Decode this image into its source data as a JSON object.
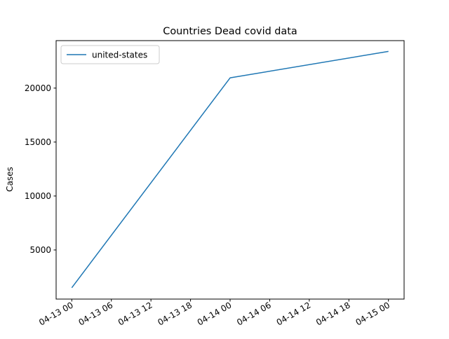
{
  "chart_data": {
    "type": "line",
    "title": "Countries Dead covid data",
    "xlabel": "",
    "ylabel": "Cases",
    "x": [
      "04-13 00",
      "04-14 00",
      "04-15 00"
    ],
    "xlim": [
      "04-13 00",
      "04-15 00"
    ],
    "ylim": [
      450,
      24400
    ],
    "x_ticks": [
      "04-13 00",
      "04-13 06",
      "04-13 12",
      "04-13 18",
      "04-14 00",
      "04-14 06",
      "04-14 12",
      "04-14 18",
      "04-15 00"
    ],
    "y_ticks": [
      5000,
      10000,
      15000,
      20000
    ],
    "grid": false,
    "legend_position": "top-left",
    "series": [
      {
        "name": "united-states",
        "color": "#1f77b4",
        "values": [
          1500,
          20950,
          23400
        ]
      }
    ]
  }
}
